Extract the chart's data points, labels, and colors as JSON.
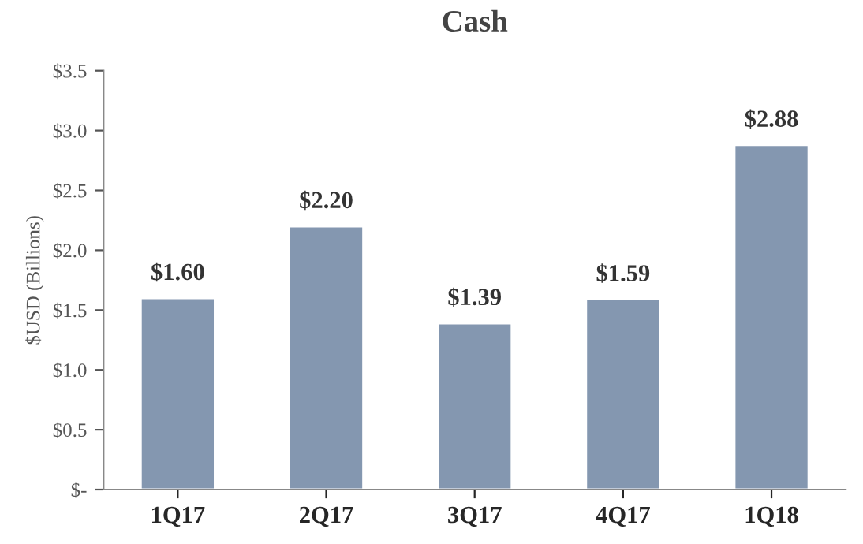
{
  "chart_data": {
    "type": "bar",
    "title": "Cash",
    "ylabel": "$USD (Billions)",
    "categories": [
      "1Q17",
      "2Q17",
      "3Q17",
      "4Q17",
      "1Q18"
    ],
    "values": [
      1.6,
      2.2,
      1.39,
      1.59,
      2.88
    ],
    "value_labels": [
      "$1.60",
      "$2.20",
      "$1.39",
      "$1.59",
      "$2.88"
    ],
    "color": "#8497b0",
    "ylim": [
      0,
      3.5
    ],
    "yticks": [
      {
        "value": 0,
        "label": "$-"
      },
      {
        "value": 0.5,
        "label": "$0.5"
      },
      {
        "value": 1.0,
        "label": "$1.0"
      },
      {
        "value": 1.5,
        "label": "$1.5"
      },
      {
        "value": 2.0,
        "label": "$2.0"
      },
      {
        "value": 2.5,
        "label": "$2.5"
      },
      {
        "value": 3.0,
        "label": "$3.0"
      },
      {
        "value": 3.5,
        "label": "$3.5"
      }
    ],
    "grid": false,
    "legend": false
  }
}
